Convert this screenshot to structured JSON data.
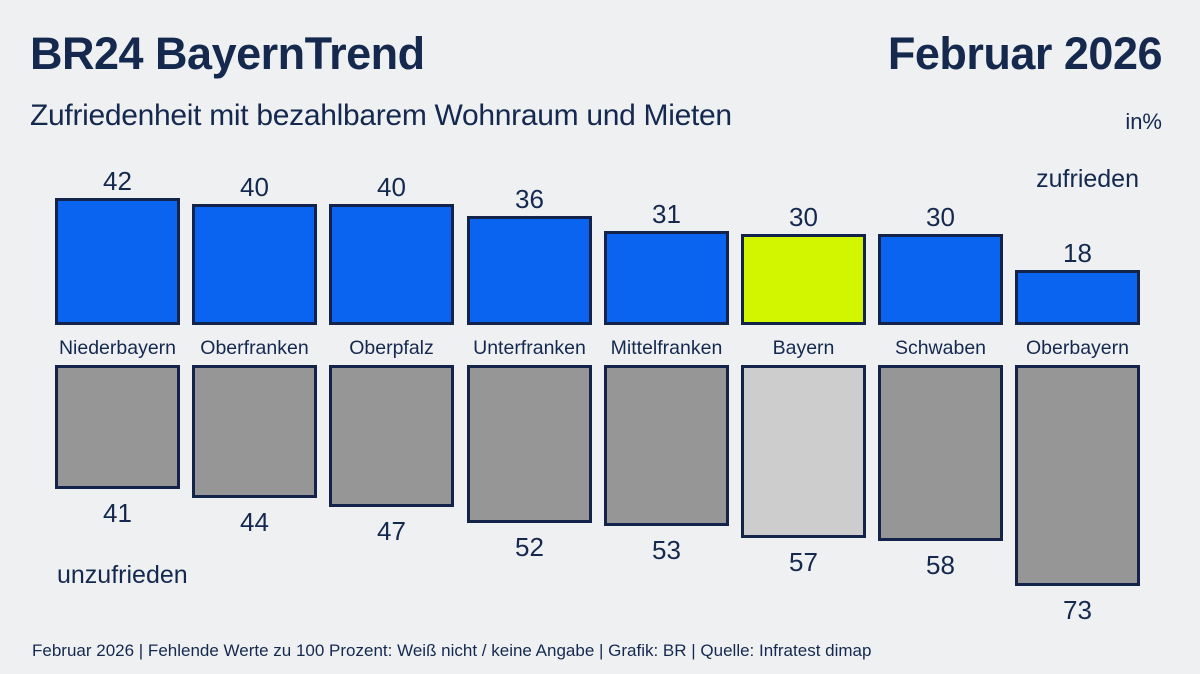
{
  "header": {
    "title": "BR24 BayernTrend",
    "date": "Februar 2026",
    "subtitle": "Zufriedenheit mit bezahlbarem Wohnraum und Mieten",
    "unit": "in%"
  },
  "legend": {
    "satisfied": "zufrieden",
    "unsatisfied": "unzufrieden"
  },
  "footer": "Februar 2026 | Fehlende Werte zu 100 Prozent: Weiß nicht / keine Angabe | Grafik: BR | Quelle: Infratest dimap",
  "colors": {
    "background": "#eff0f2",
    "navy_text": "#15294f",
    "bar_border": "#13234a",
    "satisfied_bar": "#0b64f0",
    "satisfied_highlight": "#d2f500",
    "unsatisfied_bar": "#969696",
    "unsatisfied_highlight": "#cdcdcd"
  },
  "chart_data": {
    "type": "bar",
    "title": "Zufriedenheit mit bezahlbarem Wohnraum und Mieten",
    "unit": "percent",
    "categories": [
      "Niederbayern",
      "Oberfranken",
      "Oberpfalz",
      "Unterfranken",
      "Mittelfranken",
      "Bayern",
      "Schwaben",
      "Oberbayern"
    ],
    "series": [
      {
        "name": "zufrieden",
        "values": [
          42,
          40,
          40,
          36,
          31,
          30,
          30,
          18
        ]
      },
      {
        "name": "unzufrieden",
        "values": [
          41,
          44,
          47,
          52,
          53,
          57,
          58,
          73
        ]
      }
    ],
    "highlight_category": "Bayern",
    "legend_position": "zufrieden top-right, unzufrieden bottom-left",
    "grid": false,
    "value_labels": true,
    "ylim": [
      0,
      100
    ]
  }
}
